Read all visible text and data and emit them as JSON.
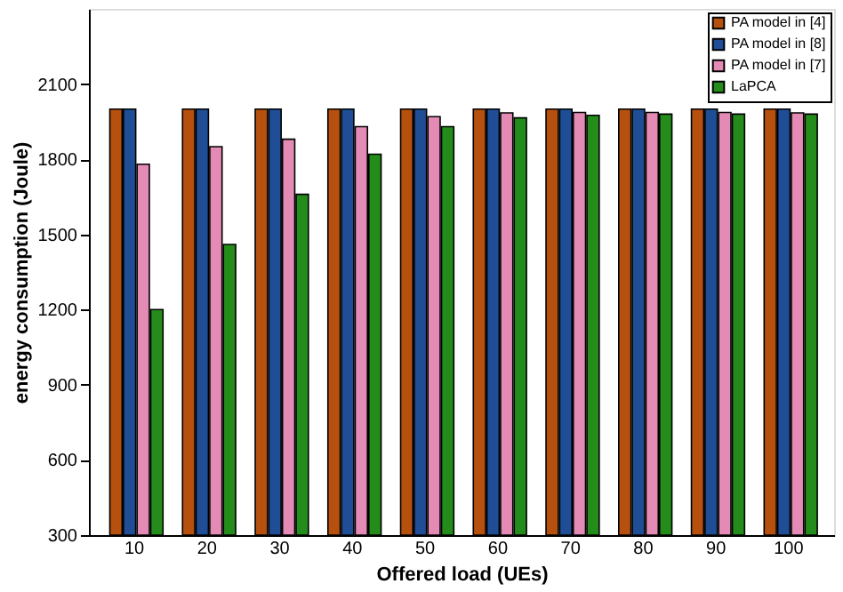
{
  "chart_data": {
    "type": "bar",
    "xlabel": "Offered load (UEs)",
    "ylabel": "energy consumption (Joule)",
    "categories": [
      "10",
      "20",
      "30",
      "40",
      "50",
      "60",
      "70",
      "80",
      "90",
      "100"
    ],
    "series": [
      {
        "name": "PA model in [4]",
        "color": "#b5500f",
        "values": [
          2000,
          2000,
          2000,
          2000,
          2000,
          2000,
          2000,
          2000,
          2000,
          2000
        ]
      },
      {
        "name": "PA model in [8]",
        "color": "#1f4e96",
        "values": [
          2000,
          2000,
          2000,
          2000,
          2000,
          2000,
          2000,
          2000,
          2000,
          2000
        ]
      },
      {
        "name": "PA model in [7]",
        "color": "#e38bb4",
        "values": [
          1780,
          1850,
          1880,
          1930,
          1970,
          1985,
          1987,
          1987,
          1987,
          1985
        ]
      },
      {
        "name": "LaPCA",
        "color": "#238c1a",
        "values": [
          1200,
          1460,
          1660,
          1820,
          1930,
          1965,
          1975,
          1980,
          1980,
          1980
        ]
      }
    ],
    "ylim": [
      300,
      2400
    ],
    "yticks": [
      300,
      600,
      900,
      1200,
      1500,
      1800,
      2100
    ],
    "grid": false,
    "legend": "top right"
  }
}
